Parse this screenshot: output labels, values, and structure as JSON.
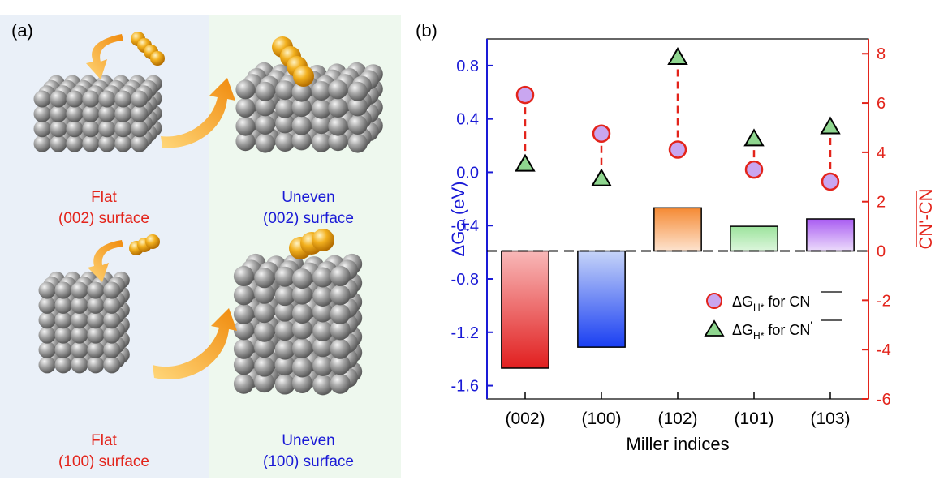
{
  "panel_a": {
    "label": "(a)",
    "captions": [
      {
        "line1": "Flat",
        "line2": "(002) surface",
        "color": "#e3241b"
      },
      {
        "line1": "Uneven",
        "line2": "(002) surface",
        "color": "#1a1ad6"
      },
      {
        "line1": "Flat",
        "line2": "(100) surface",
        "color": "#e3241b"
      },
      {
        "line1": "Uneven",
        "line2": "(100) surface",
        "color": "#1a1ad6"
      }
    ],
    "colors": {
      "left_bg": "#eaf0f8",
      "right_bg": "#eef8ee",
      "atom": "#9a9a9a",
      "adatom": "#f2b01e",
      "arrow": "#f39a12"
    }
  },
  "chart_data": {
    "label": "(b)",
    "type": "bar",
    "categories": [
      "(002)",
      "(100)",
      "(102)",
      "(101)",
      "(103)"
    ],
    "xlabel": "Miller indices",
    "ylabel_left": "ΔG",
    "ylabel_left_sub": "H*",
    "ylabel_left_unit": "(eV)",
    "ylabel_right": "CN'-CN",
    "yleft_ticks": [
      "-1.6",
      "-1.2",
      "-0.8",
      "-0.4",
      "0.0",
      "0.4",
      "0.8"
    ],
    "yleft_lim": [
      -1.7,
      1.0
    ],
    "yright_ticks": [
      "-6",
      "-4",
      "-2",
      "0",
      "2",
      "4",
      "6",
      "8"
    ],
    "yright_lim": [
      -6,
      8.6
    ],
    "baseline_right": 0,
    "bars_right_axis": [
      -4.75,
      -3.9,
      1.75,
      1.0,
      1.3
    ],
    "bar_gradients": [
      [
        "#f8b8b8",
        "#e11f1f"
      ],
      [
        "#c6d4f8",
        "#1a3ff2"
      ],
      [
        "#f58a34",
        "#fde3cf"
      ],
      [
        "#9ce39c",
        "#ddf6dd"
      ],
      [
        "#a95cf2",
        "#ecdcfb"
      ]
    ],
    "series": [
      {
        "name": "ΔGH* for CN",
        "marker": "circle",
        "values": [
          0.58,
          0.29,
          0.17,
          0.02,
          -0.07
        ],
        "fill": "#c9a6f0",
        "stroke": "#e3241b"
      },
      {
        "name": "ΔGH* for CN'",
        "marker": "triangle",
        "values": [
          0.06,
          -0.05,
          0.86,
          0.25,
          0.34
        ],
        "fill": "#8fd68f",
        "stroke": "#000000"
      }
    ],
    "legend": [
      {
        "prefix": "ΔG",
        "sub": "H*",
        "suffix": " for ",
        "over": "CN",
        "prime": false
      },
      {
        "prefix": "ΔG",
        "sub": "H*",
        "suffix": " for ",
        "over": "CN",
        "prime": true
      }
    ],
    "legend_position": "lower-right",
    "colors": {
      "left_axis": "#1a1ad6",
      "right_axis": "#e3241b",
      "connector": "#e3241b"
    }
  }
}
